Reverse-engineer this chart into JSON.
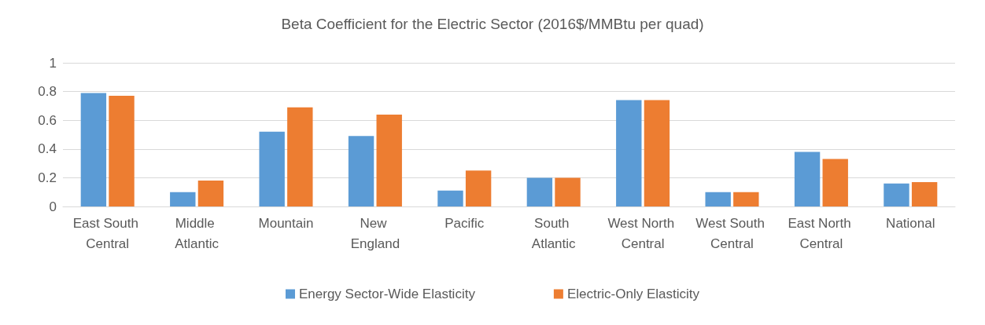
{
  "chart_data": {
    "type": "bar",
    "title": "Beta Coefficient for the Electric Sector (2016$/MMBtu per quad)",
    "categories": [
      "East South Central",
      "Middle Atlantic",
      "Mountain",
      "New England",
      "Pacific",
      "South Atlantic",
      "West North Central",
      "West South Central",
      "East North Central",
      "National"
    ],
    "series": [
      {
        "name": "Energy Sector-Wide Elasticity",
        "color": "#5b9bd5",
        "values": [
          0.79,
          0.1,
          0.52,
          0.49,
          0.11,
          0.2,
          0.74,
          0.1,
          0.38,
          0.16
        ]
      },
      {
        "name": "Electric-Only Elasticity",
        "color": "#ed7d31",
        "values": [
          0.77,
          0.18,
          0.69,
          0.64,
          0.25,
          0.2,
          0.74,
          0.1,
          0.33,
          0.17
        ]
      }
    ],
    "ylim": [
      0,
      1
    ],
    "yticks": [
      0,
      0.2,
      0.4,
      0.6,
      0.8,
      1
    ],
    "grid": "y",
    "legend": "bottom"
  }
}
